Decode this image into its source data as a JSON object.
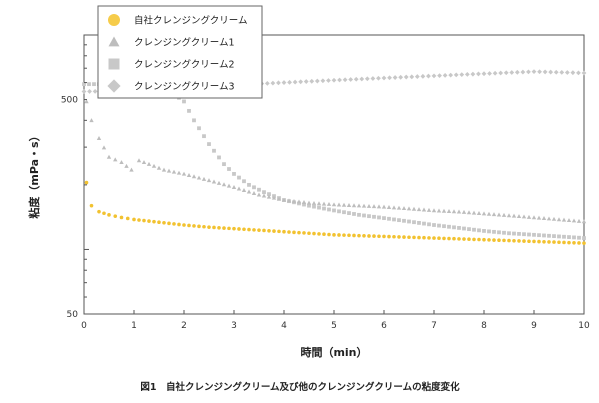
{
  "chart_data": {
    "type": "scatter",
    "xlabel": "時間（min）",
    "ylabel": "粘度（mPa・s）",
    "xlim": [
      0,
      10
    ],
    "ylim": [
      50,
      1000
    ],
    "yscale": "log",
    "x_ticks": [
      "0",
      "1",
      "2",
      "3",
      "4",
      "5",
      "6",
      "7",
      "8",
      "9",
      "10"
    ],
    "y_ticks": [
      {
        "value": 500,
        "label": "500"
      },
      {
        "value": 50,
        "label": "50"
      }
    ],
    "grid": false,
    "legend_position": "top-left",
    "caption": "図1　自社クレンジングクリーム及び他のクレンジングクリームの粘度変化",
    "series": [
      {
        "name": "自社クレンジングクリーム",
        "marker": "circle",
        "color": "#f2c230",
        "x": [
          0.05,
          0.15,
          0.3,
          0.5,
          0.75,
          1,
          1.5,
          2,
          2.5,
          3,
          3.5,
          4,
          4.5,
          5,
          5.5,
          6,
          6.5,
          7,
          7.5,
          8,
          8.5,
          9,
          9.5,
          10
        ],
        "y": [
          205,
          160,
          150,
          145,
          141,
          138,
          134,
          130,
          127,
          125,
          123,
          121,
          119,
          117,
          116,
          115,
          114,
          113,
          112,
          111,
          110,
          109,
          108,
          107
        ]
      },
      {
        "name": "クレンジングクリーム1",
        "marker": "triangle",
        "color": "#bdbdbd",
        "x": [
          0.05,
          0.15,
          0.3,
          0.5,
          0.75,
          0.95,
          1.1,
          1.3,
          1.6,
          2,
          2.5,
          3,
          3.5,
          4,
          4.5,
          5,
          5.5,
          6,
          6.5,
          7,
          7.5,
          8,
          8.5,
          9,
          9.5,
          10
        ],
        "y": [
          490,
          400,
          330,
          270,
          255,
          235,
          260,
          250,
          235,
          225,
          210,
          195,
          180,
          170,
          165,
          162,
          160,
          158,
          155,
          152,
          150,
          147,
          144,
          141,
          138,
          135
        ]
      },
      {
        "name": "クレンジングクリーム2",
        "marker": "square",
        "color": "#c8c8c8",
        "x": [
          0,
          0.5,
          1,
          1.5,
          1.8,
          2,
          2.2,
          2.5,
          2.8,
          3,
          3.3,
          3.6,
          4,
          4.5,
          5,
          5.5,
          6,
          6.5,
          7,
          7.5,
          8,
          8.5,
          9,
          9.5,
          10
        ],
        "y": [
          590,
          590,
          580,
          560,
          530,
          490,
          400,
          310,
          250,
          225,
          200,
          185,
          170,
          160,
          152,
          145,
          140,
          135,
          130,
          126,
          122,
          119,
          117,
          115,
          113
        ]
      },
      {
        "name": "クレンジングクリーム3",
        "marker": "diamond",
        "color": "#c8c8c8",
        "x": [
          0,
          1,
          2,
          3,
          4,
          5,
          6,
          7,
          8,
          9,
          10
        ],
        "y": [
          545,
          550,
          570,
          585,
          600,
          615,
          630,
          645,
          660,
          675,
          665
        ]
      }
    ]
  }
}
